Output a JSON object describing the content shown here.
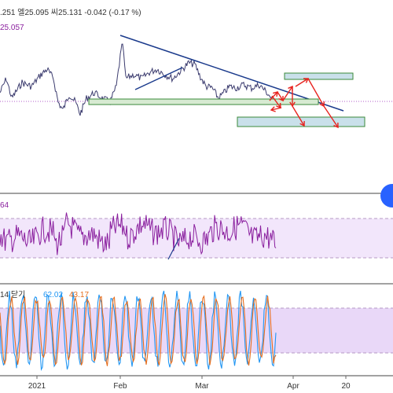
{
  "colors": {
    "price_line": "#3b3b6e",
    "trend_line": "#1a3a8c",
    "support_box_fill": "#d7ead2",
    "support_box_stroke": "#3a8a3a",
    "target_box_fill": "#c9e0ea",
    "target_box_stroke": "#3a8a3a",
    "arrow": "#e8231f",
    "rsi_line": "#8a1f9e",
    "rsi_band": "#f2e6fb",
    "stoch_k": "#2196f3",
    "stoch_d": "#e66e1e",
    "stoch_band": "#e9d8f8",
    "dotted_price": "#b25bc9",
    "grid": "#f0f0f0",
    "axis_text": "#333333",
    "legend_value": "#8a1f9e"
  },
  "header": {
    "ohlc_text": ".251 엘25.095 씨25.131 -0.042 (-0.17 %)",
    "price_value": "25.057"
  },
  "rsi_panel": {
    "label": "64"
  },
  "stoch_panel": {
    "label": "14 닫기",
    "k_value": "62.02",
    "d_value": "43.17"
  },
  "chart_data": [
    {
      "type": "line",
      "name": "price",
      "title": "",
      "x": [
        "2021",
        "Feb",
        "Mar",
        "Apr",
        "20"
      ],
      "xlabel": "",
      "ylabel": "",
      "last_value": 25.131,
      "legend": ".251 엘25.095 씨25.131 -0.042 (-0.17 %)",
      "price_tag": "25.057",
      "annotations": [
        "descending trendline",
        "support zone",
        "upper target zone",
        "lower target zone",
        "projected paths (arrows)"
      ]
    },
    {
      "type": "line",
      "name": "rsi",
      "title": "",
      "label": "64",
      "band": [
        30,
        70
      ]
    },
    {
      "type": "line",
      "title": "",
      "label": "14 닫기",
      "series": [
        {
          "name": "62.02",
          "last": 62.02
        },
        {
          "name": "43.17",
          "last": 43.17
        }
      ],
      "band": [
        20,
        80
      ]
    }
  ],
  "xaxis": {
    "ticks": [
      "2021",
      "Feb",
      "Mar",
      "Apr",
      "20"
    ]
  }
}
